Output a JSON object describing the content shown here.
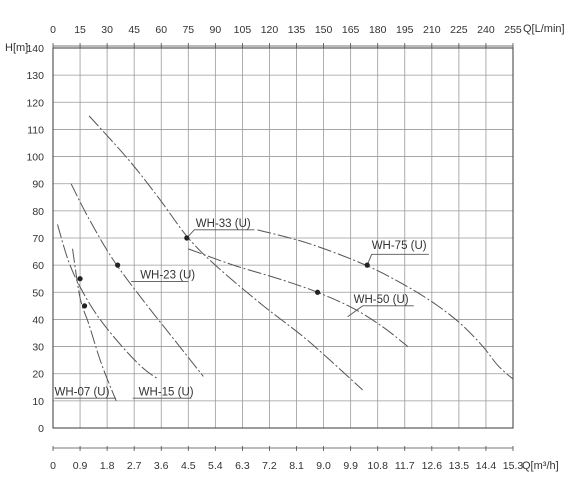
{
  "chart_data": {
    "type": "line",
    "title": "",
    "xlabel": "Q[m³/h]",
    "x2label": "Q[L/min]",
    "ylabel": "H[m]",
    "xlim": [
      0,
      15.3
    ],
    "ylim": [
      0,
      140
    ],
    "grid": true,
    "x_ticks": [
      "0",
      "0.9",
      "1.8",
      "2.7",
      "3.6",
      "4.5",
      "5.4",
      "6.3",
      "7.2",
      "8.1",
      "9.0",
      "9.9",
      "10.8",
      "11.7",
      "12.6",
      "13.5",
      "14.4",
      "15.3"
    ],
    "x2_ticks": [
      "0",
      "15",
      "30",
      "45",
      "60",
      "75",
      "90",
      "105",
      "120",
      "135",
      "150",
      "165",
      "180",
      "195",
      "210",
      "225",
      "240",
      "255"
    ],
    "y_ticks": [
      "0",
      "10",
      "20",
      "30",
      "40",
      "50",
      "60",
      "70",
      "80",
      "90",
      "100",
      "110",
      "120",
      "130",
      "140"
    ],
    "series": [
      {
        "name": "WH-07 (U)",
        "points": [
          [
            0.65,
            66
          ],
          [
            0.9,
            48
          ],
          [
            1.2,
            38
          ],
          [
            1.6,
            24
          ],
          [
            2.1,
            10
          ]
        ],
        "marker": [
          0.9,
          55
        ],
        "label_at": [
          0.05,
          12
        ],
        "label_line": [
          [
            0.05,
            11
          ],
          [
            2.1,
            11
          ]
        ]
      },
      {
        "name": "WH-15 (U)",
        "points": [
          [
            0.15,
            75
          ],
          [
            0.5,
            62
          ],
          [
            0.9,
            52
          ],
          [
            1.5,
            41
          ],
          [
            2.3,
            30
          ],
          [
            3.0,
            22
          ],
          [
            3.5,
            18
          ]
        ],
        "marker": [
          1.05,
          45
        ],
        "label_at": [
          2.85,
          12
        ],
        "label_line": [
          [
            2.65,
            11
          ],
          [
            4.6,
            11
          ]
        ]
      },
      {
        "name": "WH-23 (U)",
        "points": [
          [
            0.6,
            90
          ],
          [
            1.2,
            77
          ],
          [
            2.0,
            62
          ],
          [
            3.0,
            47
          ],
          [
            4.0,
            33
          ],
          [
            5.0,
            19
          ]
        ],
        "marker": [
          2.15,
          60
        ],
        "label_at": [
          2.9,
          55
        ],
        "label_line": [
          [
            2.6,
            54
          ],
          [
            4.5,
            54
          ]
        ]
      },
      {
        "name": "WH-33 (U)",
        "points": [
          [
            1.2,
            115
          ],
          [
            2.5,
            99
          ],
          [
            3.5,
            85
          ],
          [
            4.5,
            70
          ],
          [
            5.5,
            59
          ],
          [
            7.0,
            45
          ],
          [
            8.5,
            32
          ],
          [
            10.3,
            14
          ]
        ],
        "marker": [
          4.45,
          70
        ],
        "label_at": [
          4.75,
          74
        ],
        "label_line": [
          [
            4.45,
            70
          ],
          [
            4.7,
            73
          ],
          [
            6.7,
            73
          ]
        ]
      },
      {
        "name": "WH-50 (U)",
        "points": [
          [
            4.5,
            66
          ],
          [
            6.0,
            60
          ],
          [
            7.5,
            55
          ],
          [
            8.8,
            50
          ],
          [
            10.0,
            44
          ],
          [
            11.0,
            37
          ],
          [
            11.8,
            30
          ]
        ],
        "marker": [
          8.8,
          50
        ],
        "label_at": [
          10.0,
          46
        ],
        "label_line": [
          [
            9.8,
            41
          ],
          [
            10.3,
            45
          ],
          [
            12.0,
            45
          ]
        ]
      },
      {
        "name": "WH-75 (U)",
        "points": [
          [
            6.8,
            73
          ],
          [
            8.5,
            68
          ],
          [
            10.4,
            60
          ],
          [
            11.8,
            52
          ],
          [
            12.8,
            45
          ],
          [
            13.6,
            38
          ],
          [
            14.3,
            30
          ],
          [
            14.8,
            23
          ],
          [
            15.3,
            18
          ]
        ],
        "marker": [
          10.45,
          60
        ],
        "label_at": [
          10.6,
          66
        ],
        "label_line": [
          [
            10.45,
            60
          ],
          [
            10.6,
            64
          ],
          [
            12.5,
            64
          ]
        ]
      }
    ]
  }
}
